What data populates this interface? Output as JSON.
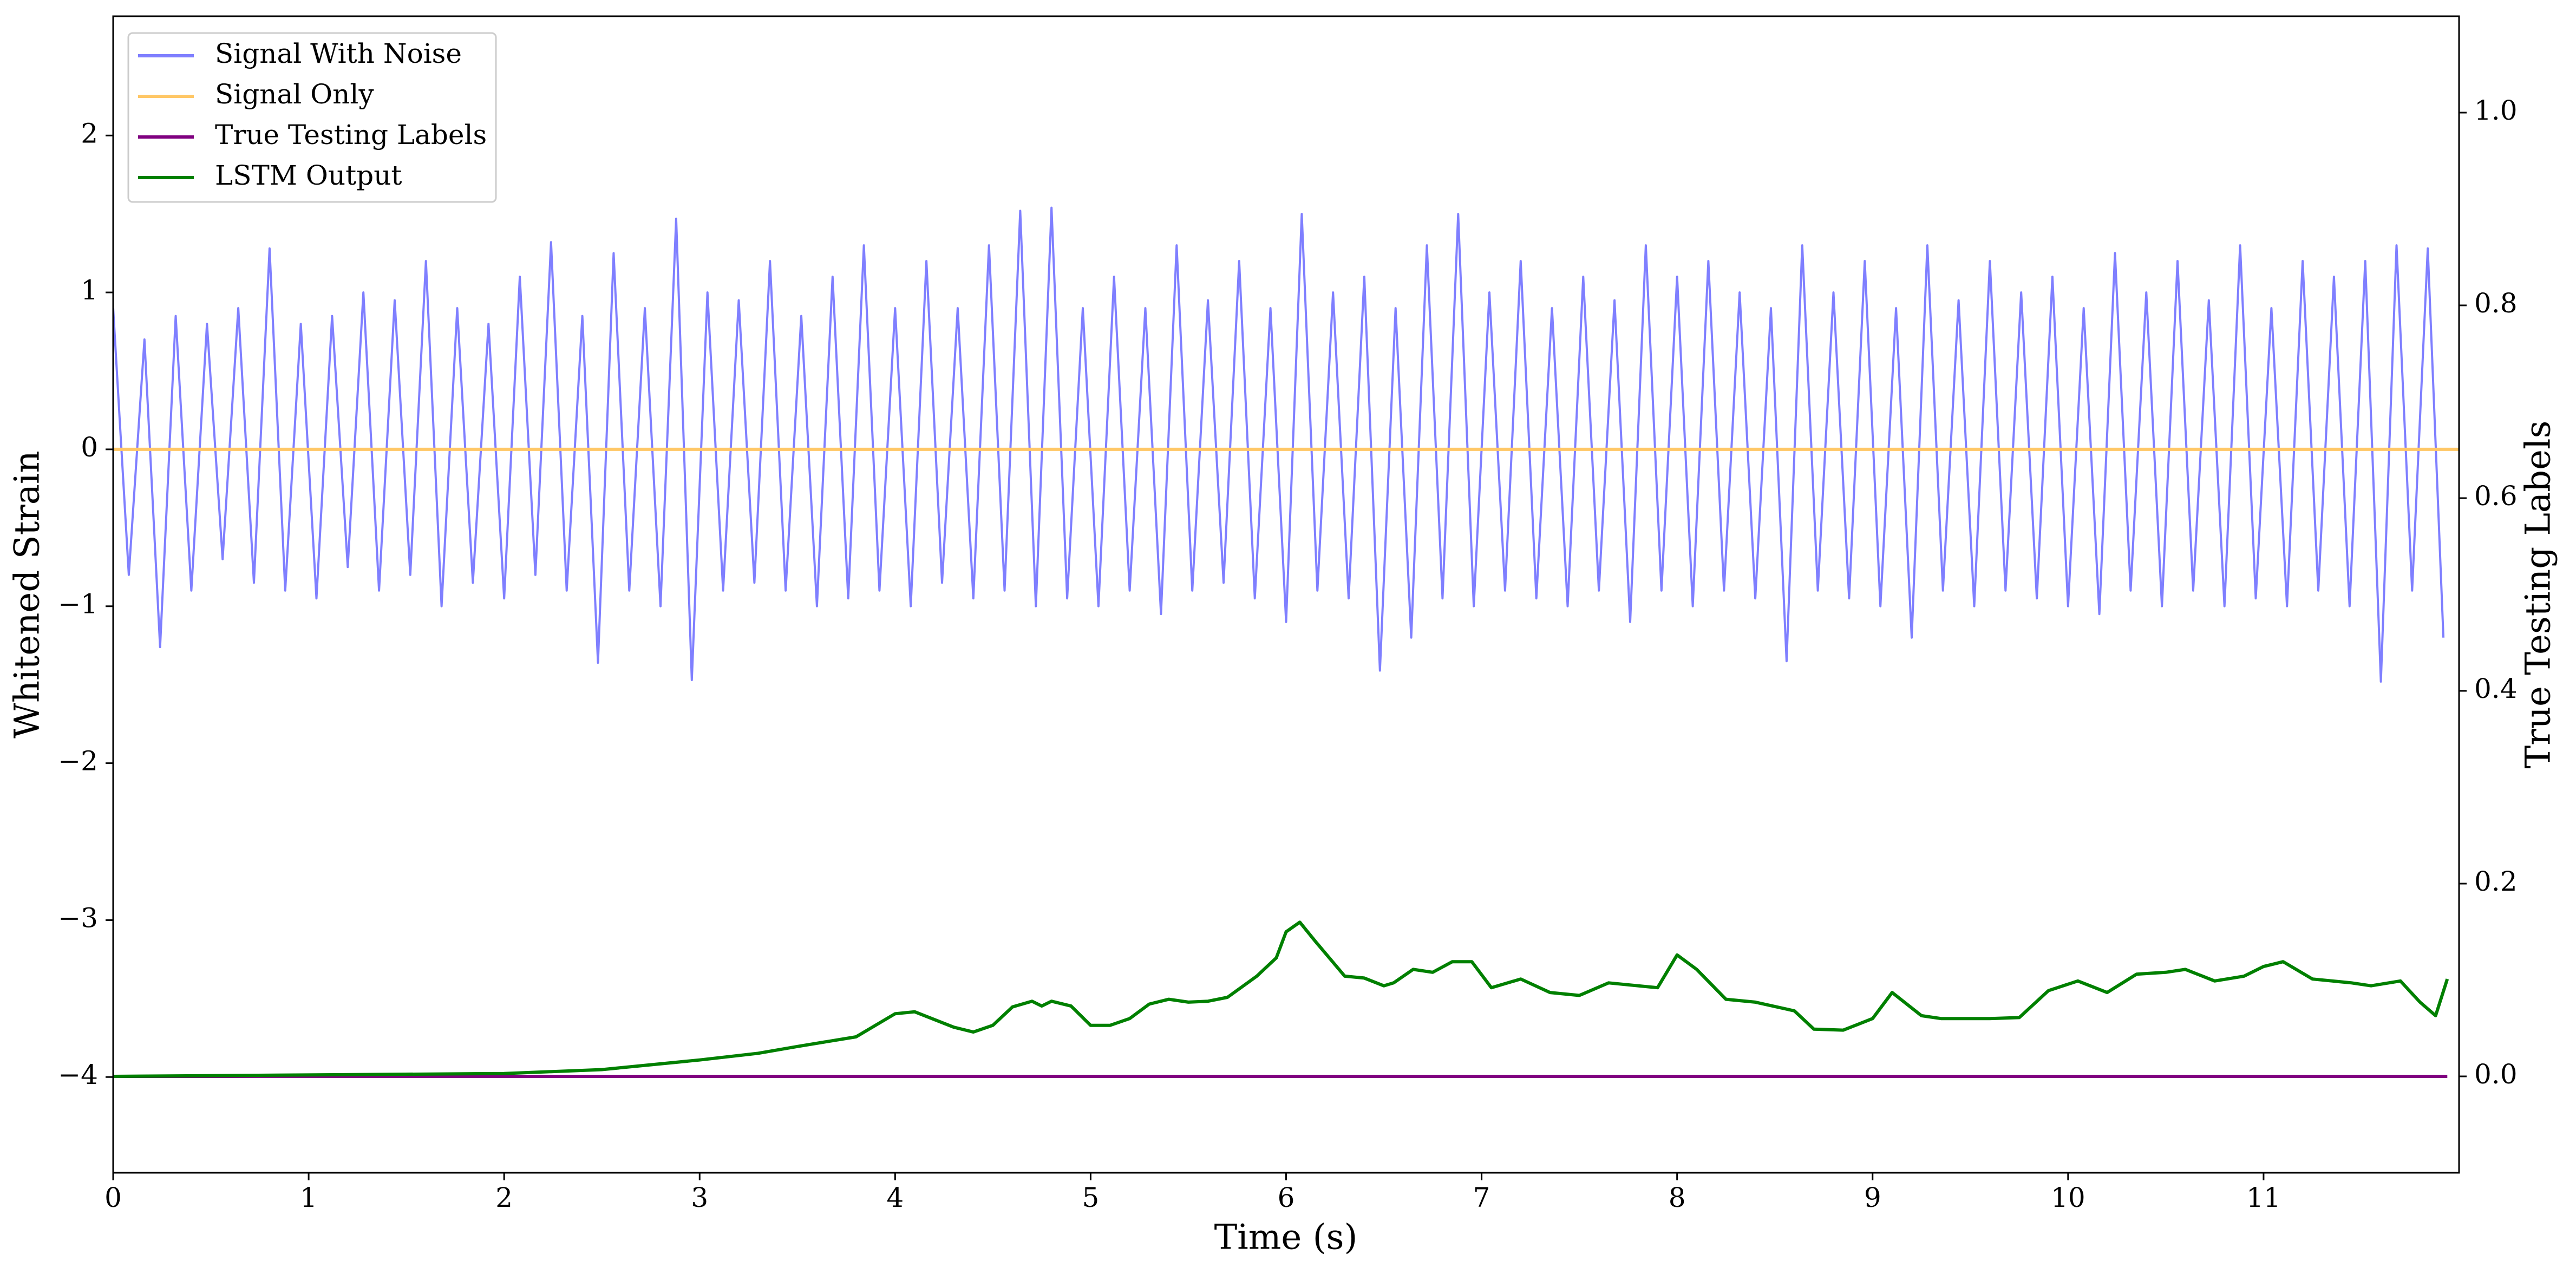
{
  "chart_data": {
    "type": "line",
    "xlabel": "Time (s)",
    "ylabel": "Whitened Strain",
    "y2label": "True Testing Labels",
    "xlim": [
      0,
      12
    ],
    "xticks": [
      0,
      1,
      2,
      3,
      4,
      5,
      6,
      7,
      8,
      9,
      10,
      11
    ],
    "ylim": [
      -4.61,
      2.76
    ],
    "yticks": [
      {
        "value": -4,
        "label": "−4"
      },
      {
        "value": -3,
        "label": "−3"
      },
      {
        "value": -2,
        "label": "−2"
      },
      {
        "value": -1,
        "label": "−1"
      },
      0,
      1,
      2
    ],
    "y2lim": [
      -0.1,
      1.1
    ],
    "y2ticks": [
      {
        "value": 0,
        "label": "0.0"
      },
      {
        "value": 0.2,
        "label": "0.2"
      },
      {
        "value": 0.4,
        "label": "0.4"
      },
      {
        "value": 0.6,
        "label": "0.6"
      },
      {
        "value": 0.8,
        "label": "0.8"
      },
      {
        "value": 1.0,
        "label": "1.0"
      }
    ],
    "legend": "upper left",
    "series": [
      {
        "name": "Signal With Noise",
        "color": "#7f7fff",
        "axis": "y",
        "x": [
          0,
          0.08,
          0.16,
          0.24,
          0.32,
          0.4,
          0.48,
          0.56,
          0.64,
          0.72,
          0.8,
          0.88,
          0.96,
          1.04,
          1.12,
          1.2,
          1.28,
          1.36,
          1.44,
          1.52,
          1.6,
          1.68,
          1.76,
          1.84,
          1.92,
          2,
          2.08,
          2.16,
          2.24,
          2.32,
          2.4,
          2.48,
          2.56,
          2.64,
          2.72,
          2.8,
          2.88,
          2.96,
          3.04,
          3.12,
          3.2,
          3.28,
          3.36,
          3.44,
          3.52,
          3.6,
          3.68,
          3.76,
          3.84,
          3.92,
          4,
          4.08,
          4.16,
          4.24,
          4.32,
          4.4,
          4.48,
          4.56,
          4.64,
          4.72,
          4.8,
          4.88,
          4.96,
          5.04,
          5.12,
          5.2,
          5.28,
          5.36,
          5.44,
          5.52,
          5.6,
          5.68,
          5.76,
          5.84,
          5.92,
          6,
          6.08,
          6.16,
          6.24,
          6.32,
          6.4,
          6.48,
          6.56,
          6.64,
          6.72,
          6.8,
          6.88,
          6.96,
          7.04,
          7.12,
          7.2,
          7.28,
          7.36,
          7.44,
          7.52,
          7.6,
          7.68,
          7.76,
          7.84,
          7.92,
          8,
          8.08,
          8.16,
          8.24,
          8.32,
          8.4,
          8.48,
          8.56,
          8.64,
          8.72,
          8.8,
          8.88,
          8.96,
          9.04,
          9.12,
          9.2,
          9.28,
          9.36,
          9.44,
          9.52,
          9.6,
          9.68,
          9.76,
          9.84,
          9.92,
          10,
          10.08,
          10.16,
          10.24,
          10.32,
          10.4,
          10.48,
          10.56,
          10.64,
          10.72,
          10.8,
          10.88,
          10.96,
          11.04,
          11.12,
          11.2,
          11.28,
          11.36,
          11.44,
          11.52,
          11.6,
          11.68,
          11.76,
          11.84,
          11.92
        ],
        "values": [
          0.9,
          -0.8,
          0.7,
          -1.26,
          0.85,
          -0.9,
          0.8,
          -0.7,
          0.9,
          -0.85,
          1.28,
          -0.9,
          0.8,
          -0.95,
          0.85,
          -0.75,
          1.0,
          -0.9,
          0.95,
          -0.8,
          1.2,
          -1.0,
          0.9,
          -0.85,
          0.8,
          -0.95,
          1.1,
          -0.8,
          1.32,
          -0.9,
          0.85,
          -1.36,
          1.25,
          -0.9,
          0.9,
          -1.0,
          1.47,
          -1.47,
          1.0,
          -0.9,
          0.95,
          -0.85,
          1.2,
          -0.9,
          0.85,
          -1.0,
          1.1,
          -0.95,
          1.3,
          -0.9,
          0.9,
          -1.0,
          1.2,
          -0.85,
          0.9,
          -0.95,
          1.3,
          -0.9,
          1.52,
          -1.0,
          1.54,
          -0.95,
          0.9,
          -1.0,
          1.1,
          -0.9,
          0.9,
          -1.05,
          1.3,
          -0.9,
          0.95,
          -0.85,
          1.2,
          -0.95,
          0.9,
          -1.1,
          1.5,
          -0.9,
          1.0,
          -0.95,
          1.1,
          -1.41,
          0.9,
          -1.2,
          1.3,
          -0.95,
          1.5,
          -1.0,
          1.0,
          -0.9,
          1.2,
          -0.95,
          0.9,
          -1.0,
          1.1,
          -0.9,
          0.95,
          -1.1,
          1.3,
          -0.9,
          1.1,
          -1.0,
          1.2,
          -0.9,
          1.0,
          -0.95,
          0.9,
          -1.35,
          1.3,
          -0.9,
          1.0,
          -0.95,
          1.2,
          -1.0,
          0.9,
          -1.2,
          1.3,
          -0.9,
          0.95,
          -1.0,
          1.2,
          -0.9,
          1.0,
          -0.95,
          1.1,
          -1.0,
          0.9,
          -1.05,
          1.25,
          -0.9,
          1.0,
          -1.0,
          1.2,
          -0.9,
          0.95,
          -1.0,
          1.3,
          -0.95,
          0.9,
          -1.0,
          1.2,
          -0.9,
          1.1,
          -1.0,
          1.2,
          -1.48,
          1.3,
          -0.9,
          1.28,
          -1.2
        ]
      },
      {
        "name": "Signal Only",
        "color": "#ffc766",
        "axis": "y",
        "x": [
          0,
          12
        ],
        "values": [
          0,
          0
        ]
      },
      {
        "name": "True Testing Labels",
        "color": "#800080",
        "axis": "y2",
        "x": [
          0,
          11.94
        ],
        "values": [
          0,
          0
        ]
      },
      {
        "name": "LSTM Output",
        "color": "#008000",
        "axis": "y2",
        "x": [
          0,
          2,
          2.5,
          3,
          3.3,
          3.5,
          3.8,
          4,
          4.1,
          4.3,
          4.4,
          4.5,
          4.6,
          4.7,
          4.75,
          4.8,
          4.9,
          5,
          5.1,
          5.2,
          5.3,
          5.4,
          5.5,
          5.6,
          5.7,
          5.85,
          5.95,
          6,
          6.07,
          6.15,
          6.3,
          6.4,
          6.5,
          6.55,
          6.65,
          6.75,
          6.85,
          6.95,
          7.05,
          7.2,
          7.35,
          7.5,
          7.65,
          7.9,
          8,
          8.1,
          8.25,
          8.4,
          8.6,
          8.7,
          8.85,
          9,
          9.1,
          9.25,
          9.35,
          9.6,
          9.75,
          9.9,
          10.05,
          10.2,
          10.35,
          10.5,
          10.6,
          10.75,
          10.9,
          11,
          11.1,
          11.25,
          11.45,
          11.55,
          11.7,
          11.8,
          11.88,
          11.94
        ],
        "values": [
          0,
          0.003,
          0.007,
          0.017,
          0.024,
          0.031,
          0.041,
          0.065,
          0.067,
          0.051,
          0.046,
          0.053,
          0.072,
          0.078,
          0.073,
          0.078,
          0.073,
          0.053,
          0.053,
          0.06,
          0.075,
          0.08,
          0.077,
          0.078,
          0.082,
          0.104,
          0.123,
          0.15,
          0.16,
          0.14,
          0.104,
          0.102,
          0.094,
          0.097,
          0.111,
          0.108,
          0.119,
          0.119,
          0.092,
          0.101,
          0.087,
          0.084,
          0.097,
          0.092,
          0.126,
          0.111,
          0.08,
          0.077,
          0.068,
          0.049,
          0.048,
          0.06,
          0.087,
          0.063,
          0.06,
          0.06,
          0.061,
          0.089,
          0.099,
          0.087,
          0.106,
          0.108,
          0.111,
          0.099,
          0.104,
          0.114,
          0.119,
          0.101,
          0.097,
          0.094,
          0.099,
          0.077,
          0.063,
          0.101
        ]
      }
    ]
  }
}
